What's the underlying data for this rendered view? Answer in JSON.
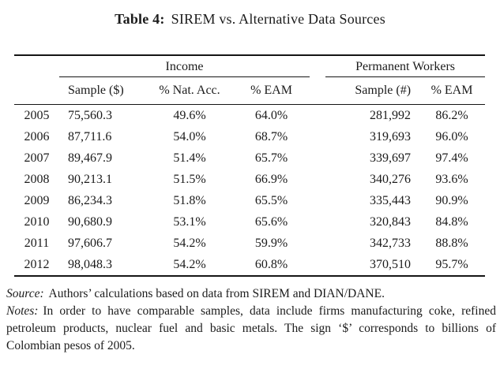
{
  "page": {
    "background": "#ffffff",
    "text_color": "#1b1b1b",
    "rule_color": "#151515"
  },
  "title": {
    "label": "Table 4:",
    "text": "SIREM vs. Alternative Data Sources"
  },
  "table": {
    "groups": [
      {
        "label": "Income"
      },
      {
        "label": "Permanent Workers"
      }
    ],
    "columns": [
      "",
      "Sample ($)",
      "% Nat. Acc.",
      "% EAM",
      "Sample (#)",
      "% EAM"
    ],
    "column_names": [
      "year",
      "income-sample",
      "income-pct-nat-acc",
      "income-pct-eam",
      "workers-sample",
      "workers-pct-eam"
    ],
    "rows": [
      [
        "2005",
        "75,560.3",
        "49.6%",
        "64.0%",
        "281,992",
        "86.2%"
      ],
      [
        "2006",
        "87,711.6",
        "54.0%",
        "68.7%",
        "319,693",
        "96.0%"
      ],
      [
        "2007",
        "89,467.9",
        "51.4%",
        "65.7%",
        "339,697",
        "97.4%"
      ],
      [
        "2008",
        "90,213.1",
        "51.5%",
        "66.9%",
        "340,276",
        "93.6%"
      ],
      [
        "2009",
        "86,234.3",
        "51.8%",
        "65.5%",
        "335,443",
        "90.9%"
      ],
      [
        "2010",
        "90,680.9",
        "53.1%",
        "65.6%",
        "320,843",
        "84.8%"
      ],
      [
        "2011",
        "97,606.7",
        "54.2%",
        "59.9%",
        "342,733",
        "88.8%"
      ],
      [
        "2012",
        "98,048.3",
        "54.2%",
        "60.8%",
        "370,510",
        "95.7%"
      ]
    ]
  },
  "footer": {
    "source_label": "Source:",
    "source_text": "Authors’ calculations based on data from SIREM and DIAN/DANE.",
    "notes_label": "Notes:",
    "notes_text": "In order to have comparable samples, data include firms manufacturing coke, refined petroleum products, nuclear fuel and basic metals. The sign ‘$’ corresponds to billions of Colombian pesos of 2005."
  }
}
